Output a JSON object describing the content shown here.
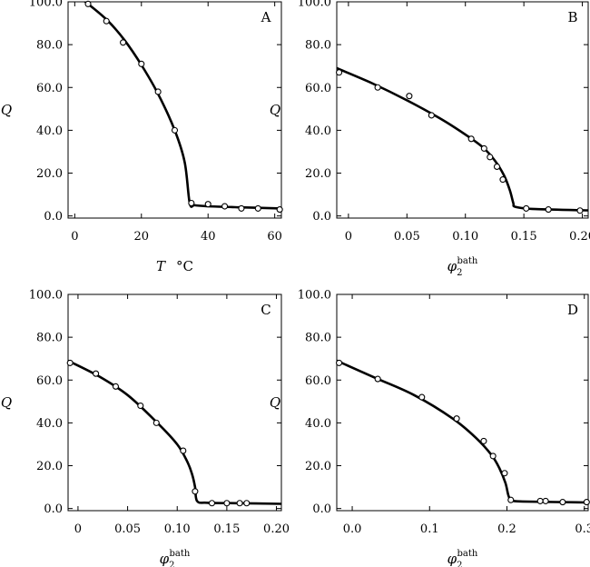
{
  "chart_data": [
    {
      "type": "scatter",
      "panel_label": "A",
      "xlabel": "T  °C",
      "xlabel_var": "T",
      "xlabel_unit": "°C",
      "ylabel": "Q",
      "xlim": [
        -2,
        62
      ],
      "ylim": [
        -1,
        100
      ],
      "xticks": [
        0,
        20,
        40,
        60
      ],
      "xtick_labels": [
        "0",
        "20",
        "40",
        "60"
      ],
      "yticks": [
        0,
        20,
        40,
        60,
        80,
        100
      ],
      "ytick_labels": [
        "0.0",
        "20.0",
        "40.0",
        "60.0",
        "80.0",
        "100.0"
      ],
      "series": [
        {
          "kind": "points",
          "x": [
            4,
            9.5,
            14.5,
            20,
            25,
            30,
            35,
            40,
            45,
            50,
            55,
            61.5
          ],
          "y": [
            99,
            91,
            81,
            71,
            58,
            40,
            6,
            5.5,
            4.5,
            3.5,
            3.5,
            3
          ]
        },
        {
          "kind": "line",
          "x": [
            -2,
            4,
            10,
            15,
            20,
            25,
            30,
            33,
            34.5,
            36,
            40,
            50,
            62
          ],
          "y": [
            106,
            99,
            91,
            82,
            70.5,
            57,
            40,
            25,
            6,
            5,
            4.5,
            4,
            3.5
          ]
        }
      ]
    },
    {
      "type": "scatter",
      "panel_label": "B",
      "xlabel": "φ2bath",
      "xlabel_var": "φ",
      "xlabel_sub": "2",
      "xlabel_sup": "bath",
      "ylabel": "Q",
      "xlim": [
        -0.01,
        0.205
      ],
      "ylim": [
        -1,
        100
      ],
      "xticks": [
        0,
        0.05,
        0.1,
        0.15,
        0.2
      ],
      "xtick_labels": [
        "0",
        "0.05",
        "0.10",
        "0.15",
        "0.20"
      ],
      "yticks": [
        0,
        20,
        40,
        60,
        80,
        100
      ],
      "ytick_labels": [
        "0.0",
        "20.0",
        "40.0",
        "60.0",
        "80.0",
        "100.0"
      ],
      "series": [
        {
          "kind": "points",
          "x": [
            -0.008,
            0.025,
            0.052,
            0.071,
            0.105,
            0.116,
            0.121,
            0.127,
            0.132,
            0.152,
            0.171,
            0.198
          ],
          "y": [
            67,
            60,
            56,
            47,
            36,
            31.5,
            27.5,
            23,
            17,
            3.5,
            3,
            2.5
          ]
        },
        {
          "kind": "line",
          "x": [
            -0.01,
            0.02,
            0.05,
            0.08,
            0.1,
            0.115,
            0.125,
            0.133,
            0.138,
            0.141,
            0.143,
            0.16,
            0.205
          ],
          "y": [
            69,
            62,
            54,
            45,
            38,
            32,
            26,
            19,
            12,
            6,
            4.2,
            3.2,
            2.6
          ]
        }
      ]
    },
    {
      "type": "scatter",
      "panel_label": "C",
      "xlabel": "φ2bath",
      "xlabel_var": "φ",
      "xlabel_sub": "2",
      "xlabel_sup": "bath",
      "ylabel": "Q",
      "xlim": [
        -0.01,
        0.205
      ],
      "ylim": [
        -1,
        100
      ],
      "xticks": [
        0,
        0.05,
        0.1,
        0.15,
        0.2
      ],
      "xtick_labels": [
        "0",
        "0.05",
        "0.10",
        "0.15",
        "0.20"
      ],
      "yticks": [
        0,
        20,
        40,
        60,
        80,
        100
      ],
      "ytick_labels": [
        "0.0",
        "20.0",
        "40.0",
        "60.0",
        "80.0",
        "100.0"
      ],
      "series": [
        {
          "kind": "points",
          "x": [
            -0.008,
            0.018,
            0.038,
            0.063,
            0.079,
            0.106,
            0.118,
            0.135,
            0.15,
            0.163,
            0.17
          ],
          "y": [
            68,
            63,
            57,
            48,
            40,
            27,
            8,
            2.5,
            2.5,
            2.5,
            2.5
          ]
        },
        {
          "kind": "line",
          "x": [
            -0.01,
            0.02,
            0.05,
            0.08,
            0.1,
            0.11,
            0.115,
            0.118,
            0.12,
            0.13,
            0.16,
            0.205
          ],
          "y": [
            69,
            62,
            53,
            40,
            30,
            22,
            16,
            10,
            3.5,
            2.7,
            2.5,
            2.2
          ]
        }
      ]
    },
    {
      "type": "scatter",
      "panel_label": "D",
      "xlabel": "φ2bath",
      "xlabel_var": "φ",
      "xlabel_sub": "2",
      "xlabel_sup": "bath",
      "ylabel": "Q",
      "xlim": [
        -0.02,
        0.305
      ],
      "ylim": [
        -1,
        100
      ],
      "xticks": [
        0,
        0.1,
        0.2,
        0.3
      ],
      "xtick_labels": [
        "0.0",
        "0.1",
        "0.2",
        "0.3"
      ],
      "yticks": [
        0,
        20,
        40,
        60,
        80,
        100
      ],
      "ytick_labels": [
        "0.0",
        "20.0",
        "40.0",
        "60.0",
        "80.0",
        "100.0"
      ],
      "series": [
        {
          "kind": "points",
          "x": [
            -0.017,
            0.033,
            0.09,
            0.135,
            0.17,
            0.182,
            0.197,
            0.205,
            0.243,
            0.25,
            0.272,
            0.303
          ],
          "y": [
            68,
            60.5,
            52,
            42,
            31.5,
            24.5,
            16.5,
            4,
            3.5,
            3.5,
            3,
            3
          ]
        },
        {
          "kind": "line",
          "x": [
            -0.02,
            0.03,
            0.08,
            0.13,
            0.16,
            0.18,
            0.19,
            0.198,
            0.202,
            0.206,
            0.22,
            0.305
          ],
          "y": [
            69,
            61,
            53,
            42,
            33,
            25,
            19,
            12,
            6,
            4,
            3.3,
            2.8
          ]
        }
      ]
    }
  ]
}
